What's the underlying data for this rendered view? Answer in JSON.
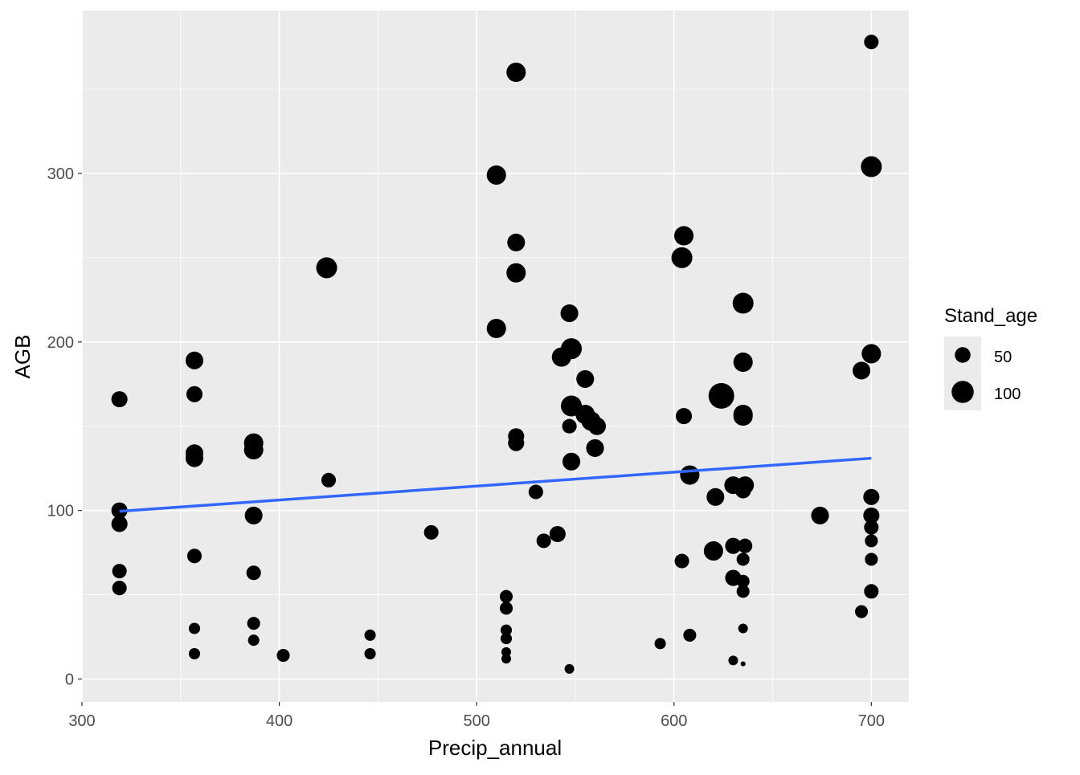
{
  "chart_data": {
    "type": "scatter",
    "title": "",
    "xlabel": "Precip_annual",
    "ylabel": "AGB",
    "xlim": [
      300,
      719
    ],
    "ylim": [
      -13.6,
      396.7
    ],
    "x_ticks": [
      300,
      400,
      500,
      600,
      700
    ],
    "y_ticks": [
      0,
      100,
      200,
      300
    ],
    "grid": true,
    "point_color": "#000000",
    "smooth_color": "#3366FF",
    "background_color": "#EBEBEB",
    "legend": {
      "title": "Stand_age",
      "placement": "right",
      "entries": [
        {
          "label": "50",
          "value": 50
        },
        {
          "label": "100",
          "value": 100
        }
      ]
    },
    "point_fields": [
      "Precip_annual",
      "AGB",
      "Stand_age"
    ],
    "points": [
      [
        319,
        166,
        53
      ],
      [
        319,
        100,
        53
      ],
      [
        319,
        92,
        53
      ],
      [
        319,
        64,
        43
      ],
      [
        319,
        54,
        43
      ],
      [
        357,
        189,
        64
      ],
      [
        357,
        169,
        53
      ],
      [
        357,
        134,
        64
      ],
      [
        357,
        131,
        64
      ],
      [
        357,
        73,
        43
      ],
      [
        357,
        30,
        26
      ],
      [
        357,
        15,
        26
      ],
      [
        387,
        140,
        76
      ],
      [
        387,
        136,
        76
      ],
      [
        387,
        97,
        64
      ],
      [
        387,
        63,
        43
      ],
      [
        387,
        33,
        34
      ],
      [
        387,
        23,
        26
      ],
      [
        402,
        14,
        34
      ],
      [
        424,
        244,
        89
      ],
      [
        425,
        118,
        43
      ],
      [
        446,
        26,
        26
      ],
      [
        446,
        15,
        26
      ],
      [
        477,
        87,
        43
      ],
      [
        520,
        360,
        76
      ],
      [
        510,
        299,
        76
      ],
      [
        520,
        259,
        64
      ],
      [
        520,
        241,
        76
      ],
      [
        510,
        208,
        76
      ],
      [
        520,
        144,
        53
      ],
      [
        520,
        140,
        53
      ],
      [
        530,
        111,
        43
      ],
      [
        515,
        49,
        34
      ],
      [
        515,
        42,
        34
      ],
      [
        515,
        29,
        26
      ],
      [
        515,
        24,
        26
      ],
      [
        515,
        16,
        19
      ],
      [
        515,
        12,
        19
      ],
      [
        534,
        82,
        43
      ],
      [
        541,
        86,
        53
      ],
      [
        547,
        217,
        64
      ],
      [
        543,
        191,
        76
      ],
      [
        548,
        196,
        89
      ],
      [
        555,
        178,
        64
      ],
      [
        548,
        162,
        89
      ],
      [
        547,
        150,
        43
      ],
      [
        555,
        157,
        76
      ],
      [
        558,
        153,
        76
      ],
      [
        561,
        150,
        64
      ],
      [
        560,
        137,
        64
      ],
      [
        548,
        129,
        64
      ],
      [
        547,
        6,
        19
      ],
      [
        593,
        21,
        26
      ],
      [
        605,
        263,
        76
      ],
      [
        604,
        250,
        89
      ],
      [
        605,
        156,
        53
      ],
      [
        608,
        121,
        76
      ],
      [
        604,
        70,
        43
      ],
      [
        608,
        26,
        34
      ],
      [
        624,
        168,
        134
      ],
      [
        621,
        108,
        64
      ],
      [
        620,
        76,
        76
      ],
      [
        630,
        115,
        64
      ],
      [
        636,
        115,
        64
      ],
      [
        635,
        112,
        53
      ],
      [
        635,
        223,
        89
      ],
      [
        635,
        188,
        76
      ],
      [
        635,
        157,
        76
      ],
      [
        635,
        156,
        76
      ],
      [
        630,
        79,
        53
      ],
      [
        636,
        79,
        43
      ],
      [
        635,
        71,
        34
      ],
      [
        630,
        60,
        53
      ],
      [
        635,
        58,
        34
      ],
      [
        635,
        52,
        34
      ],
      [
        635,
        30,
        19
      ],
      [
        630,
        11,
        19
      ],
      [
        635,
        9,
        5
      ],
      [
        674,
        97,
        64
      ],
      [
        695,
        183,
        64
      ],
      [
        700,
        193,
        76
      ],
      [
        700,
        304,
        89
      ],
      [
        700,
        378,
        43
      ],
      [
        700,
        108,
        53
      ],
      [
        700,
        97,
        53
      ],
      [
        700,
        90,
        43
      ],
      [
        700,
        82,
        34
      ],
      [
        700,
        71,
        34
      ],
      [
        700,
        52,
        43
      ],
      [
        695,
        40,
        34
      ]
    ],
    "smooth": {
      "method": "lm",
      "x": [
        319,
        700
      ],
      "y": [
        99.5,
        131
      ]
    }
  }
}
